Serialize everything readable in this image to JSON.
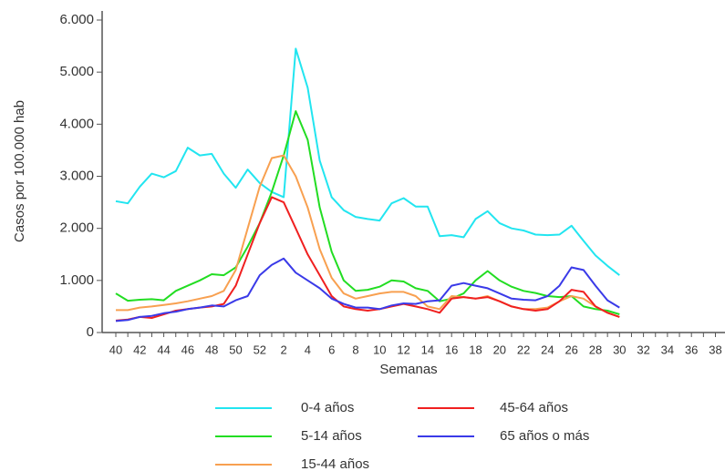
{
  "chart_data": {
    "type": "line",
    "y_label": "Casos por 100.000 hab",
    "x_label": "Semanas",
    "categories": [
      "40",
      null,
      "42",
      null,
      "44",
      null,
      "46",
      null,
      "48",
      null,
      "50",
      null,
      "52",
      null,
      "2",
      null,
      "4",
      null,
      "6",
      null,
      "8",
      null,
      "10",
      null,
      "12",
      null,
      "14",
      null,
      "16",
      null,
      "18",
      null,
      "20",
      null,
      "22",
      null,
      "24",
      null,
      "26",
      null,
      "28",
      null,
      "30",
      null,
      "32",
      null,
      "34",
      null,
      "36",
      null,
      "38"
    ],
    "ylim": [
      0,
      6000
    ],
    "yticks": [
      0,
      {
        "value": 1000,
        "label": "1.000"
      },
      {
        "value": 2000,
        "label": "2.000"
      },
      {
        "value": 3000,
        "label": "3.000"
      },
      {
        "value": 4000,
        "label": "4.000"
      },
      {
        "value": 5000,
        "label": "5.000"
      },
      {
        "value": 6000,
        "label": "6.000"
      }
    ],
    "series": [
      {
        "name": "0-4 años",
        "color": "#22e5f0",
        "values": [
          2520,
          2480,
          2800,
          3050,
          2980,
          3100,
          3550,
          3400,
          3430,
          3050,
          2780,
          3130,
          2870,
          2700,
          2600,
          5450,
          4700,
          3300,
          2600,
          2350,
          2220,
          2180,
          2150,
          2480,
          2580,
          2420,
          2420,
          1850,
          1870,
          1830,
          2180,
          2330,
          2100,
          2000,
          1960,
          1880,
          1870,
          1880,
          2050,
          1760,
          1480,
          1280,
          1100,
          null,
          null,
          null,
          null,
          null,
          null,
          null,
          null
        ]
      },
      {
        "name": "5-14 años",
        "color": "#22dd22",
        "values": [
          750,
          610,
          630,
          640,
          620,
          800,
          900,
          1000,
          1120,
          1100,
          1250,
          1650,
          2100,
          2700,
          3400,
          4250,
          3700,
          2400,
          1550,
          1000,
          800,
          820,
          880,
          1000,
          980,
          850,
          800,
          600,
          650,
          750,
          1000,
          1180,
          1000,
          880,
          800,
          760,
          700,
          680,
          700,
          500,
          450,
          420,
          350,
          null,
          null,
          null,
          null,
          null,
          null,
          null,
          null
        ]
      },
      {
        "name": "15-44 años",
        "color": "#f8a050",
        "values": [
          430,
          430,
          480,
          500,
          530,
          560,
          600,
          650,
          700,
          800,
          1200,
          2000,
          2800,
          3350,
          3400,
          3000,
          2400,
          1600,
          1050,
          750,
          650,
          700,
          750,
          780,
          780,
          700,
          500,
          450,
          700,
          680,
          650,
          700,
          600,
          500,
          450,
          450,
          480,
          600,
          700,
          650,
          500,
          380,
          300,
          null,
          null,
          null,
          null,
          null,
          null,
          null,
          null
        ]
      },
      {
        "name": "45-64 años",
        "color": "#f02020",
        "values": [
          230,
          250,
          300,
          280,
          350,
          420,
          450,
          480,
          500,
          550,
          900,
          1500,
          2100,
          2600,
          2500,
          2000,
          1500,
          1100,
          700,
          500,
          450,
          420,
          450,
          500,
          550,
          500,
          450,
          380,
          650,
          680,
          650,
          680,
          600,
          500,
          450,
          420,
          450,
          600,
          820,
          780,
          500,
          380,
          300,
          null,
          null,
          null,
          null,
          null,
          null,
          null,
          null
        ]
      },
      {
        "name": "65 años o más",
        "color": "#3a3ae8",
        "values": [
          220,
          240,
          300,
          320,
          370,
          400,
          450,
          480,
          520,
          500,
          620,
          700,
          1100,
          1300,
          1420,
          1150,
          1000,
          850,
          650,
          550,
          480,
          480,
          450,
          520,
          560,
          550,
          600,
          620,
          900,
          950,
          900,
          850,
          750,
          650,
          630,
          620,
          700,
          900,
          1250,
          1200,
          900,
          620,
          480,
          null,
          null,
          null,
          null,
          null,
          null,
          null,
          null
        ]
      }
    ]
  }
}
